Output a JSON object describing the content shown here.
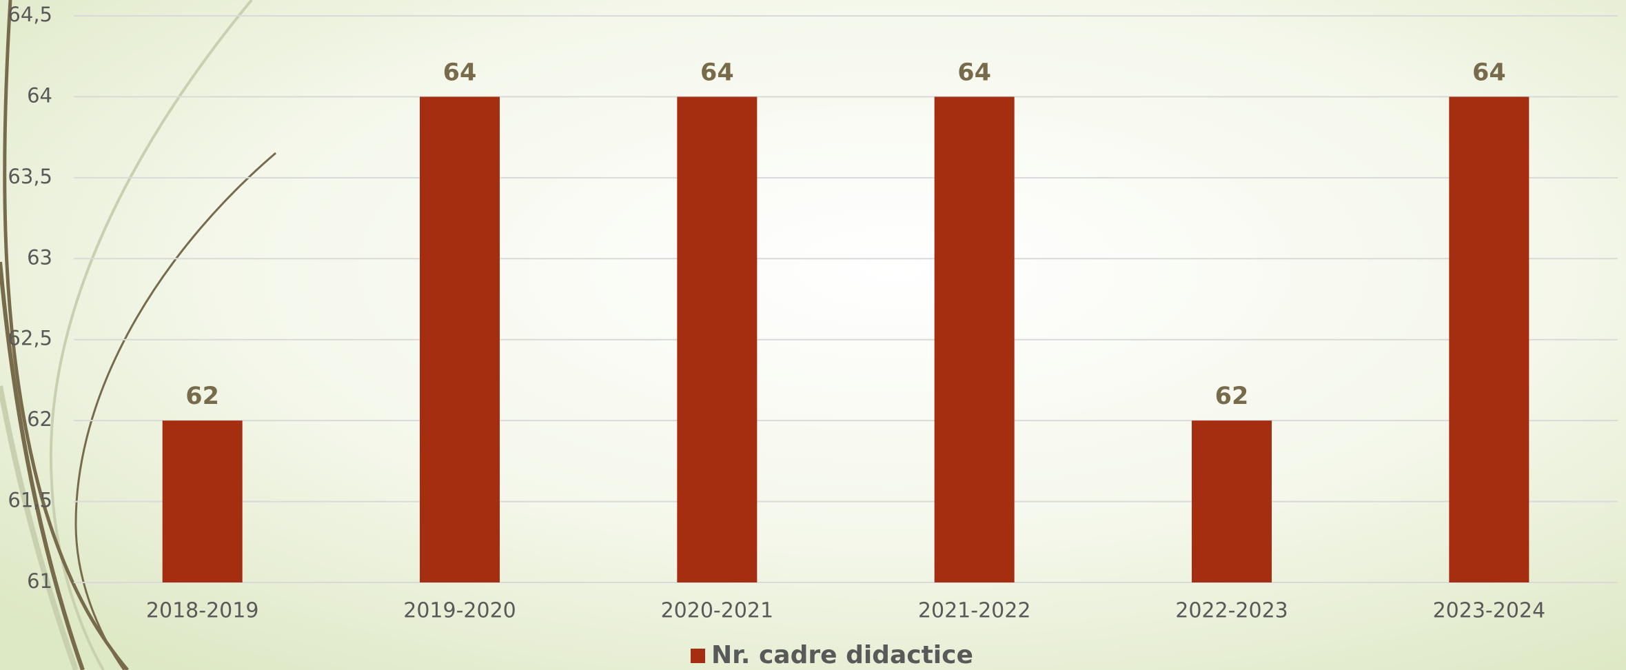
{
  "chart_data": {
    "type": "bar",
    "categories": [
      "2018-2019",
      "2019-2020",
      "2020-2021",
      "2021-2022",
      "2022-2023",
      "2023-2024"
    ],
    "series": [
      {
        "name": "Nr. cadre didactice",
        "color": "#a52e10",
        "values": [
          62,
          64,
          64,
          64,
          62,
          64
        ]
      }
    ],
    "ylim": [
      61,
      64.5
    ],
    "yticks": [
      61,
      {
        "value": 61.5,
        "label": "61,5"
      },
      62,
      {
        "value": 62.5,
        "label": "62,5"
      },
      63,
      {
        "value": 63.5,
        "label": "63,5"
      },
      64,
      {
        "value": 64.5,
        "label": "64,5"
      }
    ],
    "grid": true,
    "legend": "bottom"
  }
}
